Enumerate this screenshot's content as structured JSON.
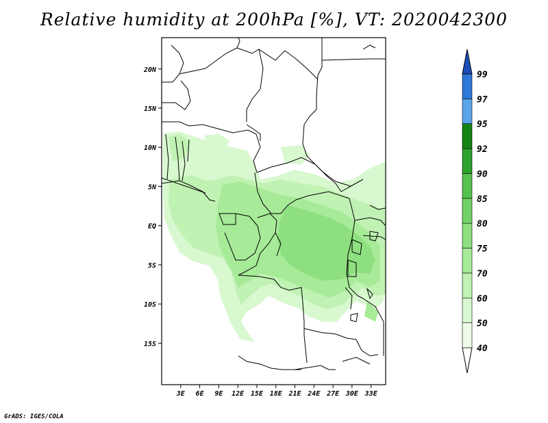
{
  "title": "Relative humidity at 200hPa [%], VT: 2020042300",
  "credit": "GrADS: IGES/COLA",
  "map": {
    "lon_labels": [
      "3E",
      "6E",
      "9E",
      "12E",
      "15E",
      "18E",
      "21E",
      "24E",
      "27E",
      "30E",
      "33E"
    ],
    "lat_labels": [
      "20N",
      "15N",
      "10N",
      "5N",
      "EQ",
      "5S",
      "10S",
      "15S"
    ]
  },
  "colorbar": {
    "levels": [
      "40",
      "50",
      "60",
      "70",
      "75",
      "80",
      "85",
      "90",
      "92",
      "95",
      "97",
      "99"
    ],
    "colors": [
      "#ffffff",
      "#eefce8",
      "#d8f8cf",
      "#c0f2b3",
      "#a7ea98",
      "#8edf7f",
      "#73d267",
      "#56c14f",
      "#2ea12e",
      "#148214",
      "#5aa4e8",
      "#2f77d8",
      "#1b4fb8"
    ]
  },
  "chart_data": {
    "type": "heatmap",
    "title": "Relative humidity at 200hPa [%], VT: 2020042300",
    "variable": "Relative humidity",
    "level": "200hPa",
    "units": "%",
    "valid_time": "2020042300",
    "x_ticks": [
      "3E",
      "6E",
      "9E",
      "12E",
      "15E",
      "18E",
      "21E",
      "24E",
      "27E",
      "30E",
      "33E"
    ],
    "y_ticks": [
      "20N",
      "15N",
      "10N",
      "5N",
      "EQ",
      "5S",
      "10S",
      "15S"
    ],
    "contour_levels": [
      40,
      50,
      60,
      70,
      75,
      80,
      85,
      90,
      92,
      95,
      97,
      99
    ]
  }
}
